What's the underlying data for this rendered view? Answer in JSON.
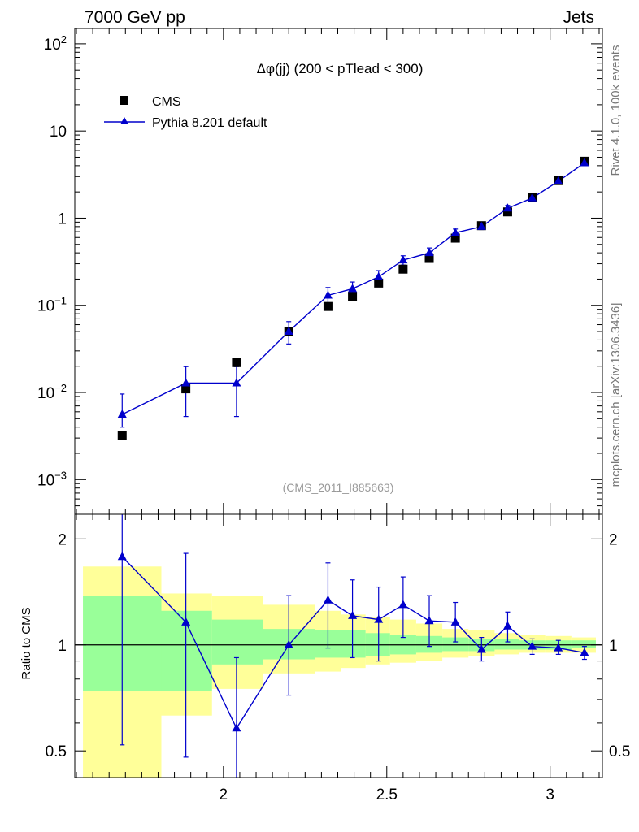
{
  "header": {
    "left": "7000 GeV pp",
    "right": "Jets"
  },
  "side_labels": {
    "top": "Rivet 4.1.0,  100k events",
    "bottom": "mcplots.cern.ch [arXiv:1306.3436]"
  },
  "colors": {
    "data": "#000000",
    "mc": "#0000cc",
    "band_inner": "#99ff99",
    "band_outer": "#ffff99"
  },
  "chart_data": [
    {
      "type": "scatter",
      "panel": "main",
      "title": "Δφ(jj) (200 < pTlead <  300)",
      "watermark": "(CMS_2011_I885663)",
      "yscale": "log",
      "ylim": [
        0.0004,
        150
      ],
      "xlim": [
        1.545,
        3.16
      ],
      "ytick_labels": [
        {
          "value": 0.001,
          "base": "10",
          "exp": "−3"
        },
        {
          "value": 0.01,
          "base": "10",
          "exp": "−2"
        },
        {
          "value": 0.1,
          "base": "10",
          "exp": "−1"
        },
        {
          "value": 1,
          "base": "1",
          "exp": ""
        },
        {
          "value": 10,
          "base": "10",
          "exp": ""
        },
        {
          "value": 100,
          "base": "10",
          "exp": "2"
        }
      ],
      "legend": [
        {
          "label": "CMS",
          "marker": "square"
        },
        {
          "label": "Pythia 8.201 default",
          "marker": "triangle"
        }
      ],
      "series": [
        {
          "name": "CMS",
          "x": [
            1.69,
            1.885,
            2.04,
            2.2,
            2.32,
            2.395,
            2.475,
            2.55,
            2.63,
            2.71,
            2.79,
            2.87,
            2.945,
            3.025,
            3.105
          ],
          "y": [
            0.0032,
            0.011,
            0.022,
            0.05,
            0.097,
            0.127,
            0.18,
            0.26,
            0.345,
            0.59,
            0.82,
            1.18,
            1.72,
            2.7,
            4.5
          ]
        },
        {
          "name": "Pythia 8.201 default",
          "x": [
            1.69,
            1.885,
            2.04,
            2.2,
            2.32,
            2.395,
            2.475,
            2.55,
            2.63,
            2.71,
            2.79,
            2.87,
            2.945,
            3.025,
            3.105
          ],
          "y": [
            0.0056,
            0.0128,
            0.0128,
            0.05,
            0.13,
            0.155,
            0.212,
            0.33,
            0.4,
            0.68,
            0.8,
            1.3,
            1.7,
            2.65,
            4.3
          ],
          "err_low": [
            0.004,
            0.0053,
            0.0053,
            0.036,
            0.105,
            0.128,
            0.18,
            0.29,
            0.355,
            0.62,
            0.74,
            1.2,
            1.62,
            2.55,
            4.15
          ],
          "err_high": [
            0.0096,
            0.0198,
            0.0198,
            0.065,
            0.16,
            0.185,
            0.25,
            0.37,
            0.455,
            0.75,
            0.87,
            1.4,
            1.78,
            2.75,
            4.45
          ]
        }
      ]
    },
    {
      "type": "line",
      "panel": "ratio",
      "ylabel": "Ratio to CMS",
      "yscale": "log",
      "ylim": [
        0.42,
        2.35
      ],
      "xlim": [
        1.545,
        3.16
      ],
      "reference_line": 1,
      "ytick_labels": [
        {
          "value": 0.5,
          "label": "0.5"
        },
        {
          "value": 1,
          "label": "1"
        },
        {
          "value": 2,
          "label": "2"
        }
      ],
      "xtick_labels": [
        {
          "value": 2,
          "label": "2"
        },
        {
          "value": 2.5,
          "label": "2.5"
        },
        {
          "value": 3,
          "label": "3"
        }
      ],
      "bands": [
        {
          "x0": 1.57,
          "x1": 1.81,
          "inner": [
            0.74,
            1.38
          ],
          "outer": [
            0.3,
            1.67
          ]
        },
        {
          "x0": 1.81,
          "x1": 1.965,
          "inner": [
            0.74,
            1.25
          ],
          "outer": [
            0.63,
            1.4
          ]
        },
        {
          "x0": 1.965,
          "x1": 2.12,
          "inner": [
            0.88,
            1.18
          ],
          "outer": [
            0.75,
            1.38
          ]
        },
        {
          "x0": 2.12,
          "x1": 2.28,
          "inner": [
            0.91,
            1.11
          ],
          "outer": [
            0.83,
            1.3
          ]
        },
        {
          "x0": 2.28,
          "x1": 2.36,
          "inner": [
            0.92,
            1.1
          ],
          "outer": [
            0.84,
            1.25
          ]
        },
        {
          "x0": 2.36,
          "x1": 2.435,
          "inner": [
            0.92,
            1.1
          ],
          "outer": [
            0.86,
            1.22
          ]
        },
        {
          "x0": 2.435,
          "x1": 2.51,
          "inner": [
            0.93,
            1.08
          ],
          "outer": [
            0.88,
            1.2
          ]
        },
        {
          "x0": 2.51,
          "x1": 2.59,
          "inner": [
            0.94,
            1.07
          ],
          "outer": [
            0.89,
            1.18
          ]
        },
        {
          "x0": 2.59,
          "x1": 2.67,
          "inner": [
            0.95,
            1.06
          ],
          "outer": [
            0.9,
            1.15
          ]
        },
        {
          "x0": 2.67,
          "x1": 2.75,
          "inner": [
            0.96,
            1.05
          ],
          "outer": [
            0.92,
            1.11
          ]
        },
        {
          "x0": 2.75,
          "x1": 2.83,
          "inner": [
            0.96,
            1.04
          ],
          "outer": [
            0.93,
            1.1
          ]
        },
        {
          "x0": 2.83,
          "x1": 2.905,
          "inner": [
            0.97,
            1.04
          ],
          "outer": [
            0.94,
            1.08
          ]
        },
        {
          "x0": 2.905,
          "x1": 2.985,
          "inner": [
            0.97,
            1.03
          ],
          "outer": [
            0.95,
            1.07
          ]
        },
        {
          "x0": 2.985,
          "x1": 3.065,
          "inner": [
            0.97,
            1.03
          ],
          "outer": [
            0.95,
            1.06
          ]
        },
        {
          "x0": 3.065,
          "x1": 3.14,
          "inner": [
            0.98,
            1.03
          ],
          "outer": [
            0.95,
            1.05
          ]
        }
      ],
      "series": [
        {
          "name": "Pythia 8.201 default",
          "x": [
            1.69,
            1.885,
            2.04,
            2.2,
            2.32,
            2.395,
            2.475,
            2.55,
            2.63,
            2.71,
            2.79,
            2.87,
            2.945,
            3.025,
            3.105
          ],
          "y": [
            1.78,
            1.16,
            0.58,
            1.0,
            1.34,
            1.21,
            1.18,
            1.3,
            1.17,
            1.16,
            0.97,
            1.13,
            0.99,
            0.98,
            0.95
          ],
          "err_low": [
            0.52,
            0.48,
            0.3,
            0.72,
            0.98,
            0.92,
            0.9,
            1.05,
            0.99,
            1.02,
            0.9,
            1.02,
            0.94,
            0.94,
            0.91
          ],
          "err_high": [
            2.5,
            1.82,
            0.92,
            1.38,
            1.71,
            1.53,
            1.46,
            1.56,
            1.38,
            1.32,
            1.05,
            1.24,
            1.04,
            1.03,
            0.99
          ]
        }
      ]
    }
  ]
}
